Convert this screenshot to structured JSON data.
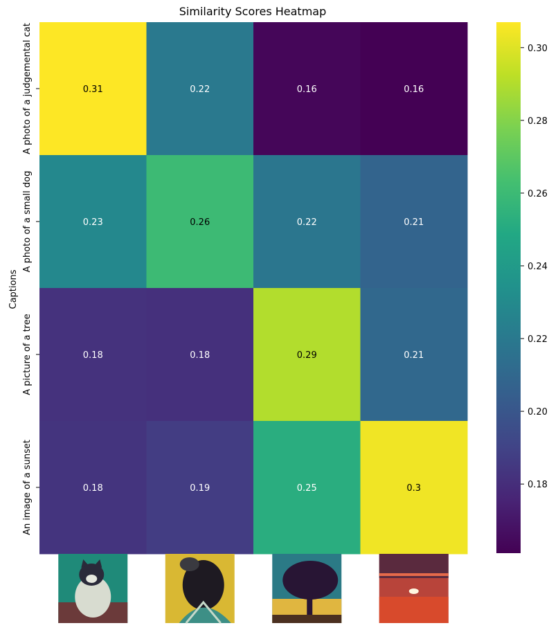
{
  "chart_data": {
    "type": "heatmap",
    "title": "Similarity Scores Heatmap",
    "ylabel": "Captions",
    "xlabel": "",
    "rows": [
      "A photo of a judgemental cat",
      "A photo of a small dog",
      "A picture of a tree",
      "An image of a sunset"
    ],
    "columns": [
      "cat",
      "dog",
      "tree",
      "sunset"
    ],
    "values": [
      [
        0.307,
        0.22,
        0.163,
        0.161
      ],
      [
        0.229,
        0.26,
        0.218,
        0.208
      ],
      [
        0.182,
        0.181,
        0.29,
        0.21
      ],
      [
        0.183,
        0.187,
        0.252,
        0.304
      ]
    ],
    "cell_labels": [
      [
        "0.31",
        "0.22",
        "0.16",
        "0.16"
      ],
      [
        "0.23",
        "0.26",
        "0.22",
        "0.21"
      ],
      [
        "0.18",
        "0.18",
        "0.29",
        "0.21"
      ],
      [
        "0.18",
        "0.19",
        "0.25",
        "0.3"
      ]
    ],
    "colormap": "viridis",
    "vmin": 0.161,
    "vmax": 0.307,
    "colorbar_ticks": [
      0.18,
      0.2,
      0.22,
      0.24,
      0.26,
      0.28,
      0.3
    ],
    "colorbar_tick_labels": [
      "0.18",
      "0.20",
      "0.22",
      "0.24",
      "0.26",
      "0.28",
      "0.30"
    ],
    "grid": false,
    "column_thumbnails": [
      "cat-photo",
      "dog-photo",
      "tree-photo",
      "sunset-photo"
    ]
  }
}
